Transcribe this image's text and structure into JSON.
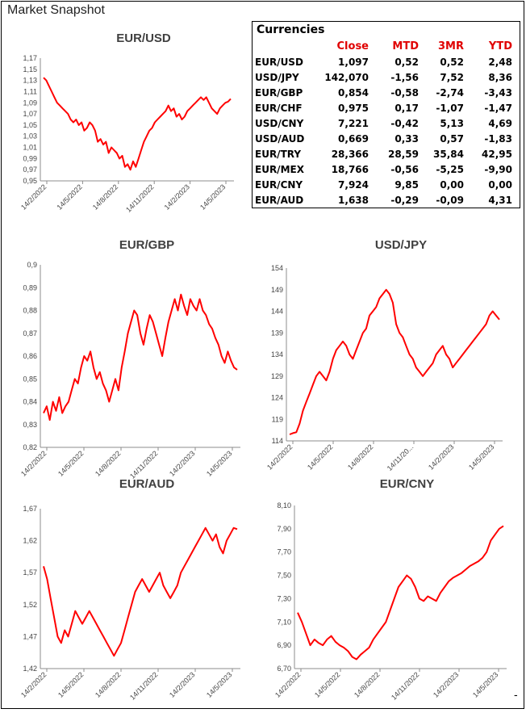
{
  "page": {
    "title": "Market Snapshot"
  },
  "table": {
    "title": "Currencies",
    "columns": [
      "Close",
      "MTD",
      "3MR",
      "YTD"
    ],
    "rows": [
      {
        "pair": "EUR/USD",
        "close": "1,097",
        "mtd": "0,52",
        "m3r": "0,52",
        "ytd": "2,48"
      },
      {
        "pair": "USD/JPY",
        "close": "142,070",
        "mtd": "-1,56",
        "m3r": "7,52",
        "ytd": "8,36"
      },
      {
        "pair": "EUR/GBP",
        "close": "0,854",
        "mtd": "-0,58",
        "m3r": "-2,74",
        "ytd": "-3,43"
      },
      {
        "pair": "EUR/CHF",
        "close": "0,975",
        "mtd": "0,17",
        "m3r": "-1,07",
        "ytd": "-1,47"
      },
      {
        "pair": "USD/CNY",
        "close": "7,221",
        "mtd": "-0,42",
        "m3r": "5,13",
        "ytd": "4,69"
      },
      {
        "pair": "USD/AUD",
        "close": "0,669",
        "mtd": "0,33",
        "m3r": "0,57",
        "ytd": "-1,83"
      },
      {
        "pair": "EUR/TRY",
        "close": "28,366",
        "mtd": "28,59",
        "m3r": "35,84",
        "ytd": "42,95"
      },
      {
        "pair": "EUR/MEX",
        "close": "18,766",
        "mtd": "-0,56",
        "m3r": "-5,25",
        "ytd": "-9,90"
      },
      {
        "pair": "EUR/CNY",
        "close": "7,924",
        "mtd": "9,85",
        "m3r": "0,00",
        "ytd": "0,00"
      },
      {
        "pair": "EUR/AUD",
        "close": "1,638",
        "mtd": "-0,29",
        "m3r": "-0,09",
        "ytd": "4,31"
      }
    ]
  },
  "chart_data": [
    {
      "id": "eurusd",
      "type": "line",
      "title": "EUR/USD",
      "color": "#ff0000",
      "ylim": [
        0.95,
        1.17
      ],
      "ytick_labels": [
        "1,17",
        "1,15",
        "1,13",
        "1,11",
        "1,09",
        "1,07",
        "1,05",
        "1,03",
        "1,01",
        "0,99",
        "0,97",
        "0,95"
      ],
      "xtick_labels": [
        "14/2/2022",
        "14/5/2022",
        "14/8/2022",
        "14/11/2022",
        "14/2/2023",
        "14/5/2023"
      ],
      "series": [
        {
          "values": [
            1.135,
            1.13,
            1.12,
            1.11,
            1.1,
            1.09,
            1.085,
            1.08,
            1.075,
            1.07,
            1.06,
            1.055,
            1.06,
            1.05,
            1.055,
            1.04,
            1.045,
            1.055,
            1.05,
            1.04,
            1.02,
            1.025,
            1.015,
            1.02,
            1.0,
            1.01,
            1.005,
            1.0,
            0.99,
            0.995,
            0.975,
            0.98,
            0.97,
            0.985,
            0.975,
            0.99,
            1.005,
            1.02,
            1.03,
            1.04,
            1.045,
            1.055,
            1.06,
            1.065,
            1.07,
            1.075,
            1.085,
            1.075,
            1.08,
            1.065,
            1.07,
            1.06,
            1.065,
            1.075,
            1.08,
            1.085,
            1.09,
            1.095,
            1.1,
            1.095,
            1.1,
            1.09,
            1.08,
            1.075,
            1.07,
            1.08,
            1.085,
            1.09,
            1.092,
            1.097
          ]
        }
      ]
    },
    {
      "id": "eurgbp",
      "type": "line",
      "title": "EUR/GBP",
      "color": "#ff0000",
      "ylim": [
        0.82,
        0.9
      ],
      "ytick_labels": [
        "0,9",
        "0,89",
        "0,88",
        "0,87",
        "0,86",
        "0,85",
        "0,84",
        "0,83",
        "0,82"
      ],
      "xtick_labels": [
        "14/2/2022",
        "14/5/2022",
        "14/8/2022",
        "14/11/2022",
        "14/2/2023",
        "14/5/2023"
      ],
      "series": [
        {
          "values": [
            0.835,
            0.838,
            0.832,
            0.84,
            0.836,
            0.842,
            0.835,
            0.838,
            0.84,
            0.845,
            0.85,
            0.848,
            0.855,
            0.86,
            0.858,
            0.862,
            0.855,
            0.85,
            0.853,
            0.848,
            0.845,
            0.84,
            0.845,
            0.85,
            0.845,
            0.855,
            0.862,
            0.87,
            0.875,
            0.88,
            0.878,
            0.87,
            0.865,
            0.872,
            0.878,
            0.875,
            0.87,
            0.865,
            0.86,
            0.868,
            0.875,
            0.88,
            0.885,
            0.88,
            0.887,
            0.882,
            0.878,
            0.885,
            0.882,
            0.88,
            0.885,
            0.88,
            0.878,
            0.874,
            0.872,
            0.868,
            0.865,
            0.86,
            0.857,
            0.862,
            0.858,
            0.855,
            0.854
          ]
        }
      ]
    },
    {
      "id": "usdjpy",
      "type": "line",
      "title": "USD/JPY",
      "color": "#ff0000",
      "ylim": [
        114,
        154
      ],
      "ytick_labels": [
        "154",
        "149",
        "144",
        "139",
        "134",
        "129",
        "124",
        "119",
        "114"
      ],
      "xtick_labels": [
        "14/2/2022",
        "14/5/2022",
        "14/8/2022",
        "14/11/20...",
        "14/2/2023",
        "14/5/2023"
      ],
      "series": [
        {
          "values": [
            115.5,
            115.8,
            116,
            118,
            121,
            123,
            125,
            127,
            129,
            130,
            129,
            128,
            130,
            133,
            135,
            136,
            137,
            136,
            134,
            133,
            135,
            137,
            139,
            140,
            143,
            144,
            145,
            147,
            148,
            149,
            148,
            146,
            141,
            139,
            138,
            136,
            134,
            133,
            131,
            130,
            129,
            130,
            131,
            132,
            134,
            135,
            136,
            134,
            133,
            131,
            132,
            133,
            134,
            135,
            136,
            137,
            138,
            139,
            140,
            141,
            143,
            144,
            143,
            142.07
          ]
        }
      ]
    },
    {
      "id": "euraud",
      "type": "line",
      "title": "EUR/AUD",
      "color": "#ff0000",
      "ylim": [
        1.42,
        1.67
      ],
      "ytick_labels": [
        "1,67",
        "1,62",
        "1,57",
        "1,52",
        "1,47",
        "1,42"
      ],
      "xtick_labels": [
        "14/2/2022",
        "14/5/2022",
        "14/8/2022",
        "14/11/2022",
        "14/2/2023",
        "14/5/2023"
      ],
      "series": [
        {
          "values": [
            1.58,
            1.56,
            1.53,
            1.5,
            1.47,
            1.46,
            1.48,
            1.47,
            1.49,
            1.51,
            1.5,
            1.49,
            1.5,
            1.51,
            1.5,
            1.49,
            1.48,
            1.47,
            1.46,
            1.45,
            1.44,
            1.45,
            1.46,
            1.48,
            1.5,
            1.52,
            1.54,
            1.55,
            1.56,
            1.55,
            1.54,
            1.55,
            1.56,
            1.57,
            1.55,
            1.54,
            1.53,
            1.54,
            1.55,
            1.57,
            1.58,
            1.59,
            1.6,
            1.61,
            1.62,
            1.63,
            1.64,
            1.63,
            1.62,
            1.63,
            1.61,
            1.6,
            1.62,
            1.63,
            1.64,
            1.638
          ]
        }
      ]
    },
    {
      "id": "eurcny",
      "type": "line",
      "title": "EUR/CNY",
      "color": "#ff0000",
      "ylim": [
        6.7,
        8.1
      ],
      "ytick_labels": [
        "8,10",
        "7,90",
        "7,70",
        "7,50",
        "7,30",
        "7,10",
        "6,90",
        "6,70"
      ],
      "xtick_labels": [
        "14/2/2022",
        "14/5/2022",
        "14/8/2022",
        "14/11/2022",
        "14/2/2023",
        "14/5/2023"
      ],
      "series": [
        {
          "values": [
            7.18,
            7.1,
            7.0,
            6.9,
            6.95,
            6.92,
            6.9,
            6.95,
            6.98,
            6.93,
            6.9,
            6.88,
            6.85,
            6.8,
            6.78,
            6.82,
            6.85,
            6.88,
            6.95,
            7.0,
            7.05,
            7.1,
            7.2,
            7.3,
            7.4,
            7.45,
            7.5,
            7.47,
            7.4,
            7.3,
            7.28,
            7.32,
            7.3,
            7.28,
            7.35,
            7.4,
            7.45,
            7.48,
            7.5,
            7.52,
            7.55,
            7.58,
            7.6,
            7.62,
            7.65,
            7.7,
            7.8,
            7.85,
            7.9,
            7.924
          ]
        }
      ]
    }
  ]
}
